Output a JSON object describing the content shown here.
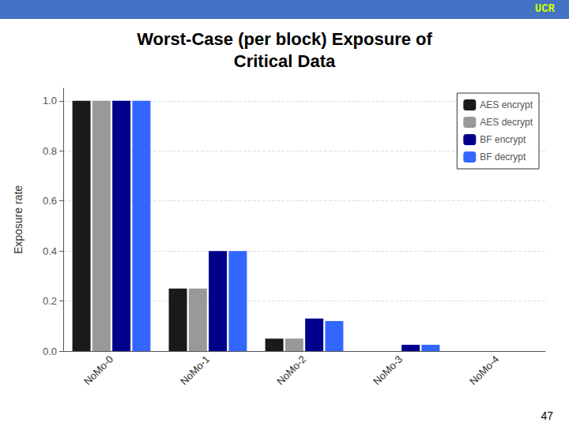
{
  "chart_data": {
    "type": "bar",
    "title": "Worst-Case (per block) Exposure of\nCritical Data",
    "annotations": [
      "UCR",
      "47"
    ],
    "ylabel": "Exposure rate",
    "categories": [
      "NoMo-0",
      "NoMo-1",
      "NoMo-2",
      "NoMo-3",
      "NoMo-4"
    ],
    "series": [
      {
        "name": "AES encrypt",
        "color": "#1a1a1a",
        "values": [
          1.0,
          0.25,
          0.05,
          0.0,
          0.0
        ]
      },
      {
        "name": "AES decrypt",
        "color": "#999999",
        "values": [
          1.0,
          0.25,
          0.05,
          0.0,
          0.0
        ]
      },
      {
        "name": "BF encrypt",
        "color": "#00008b",
        "values": [
          1.0,
          0.4,
          0.13,
          0.025,
          0.0
        ]
      },
      {
        "name": "BF decrypt",
        "color": "#3366ff",
        "values": [
          1.0,
          0.4,
          0.12,
          0.025,
          0.0
        ]
      }
    ],
    "ylim": [
      0,
      1.05
    ],
    "yticks": [
      {
        "value": 0,
        "label": "0.0"
      },
      0.2,
      0.4,
      0.6,
      0.8,
      {
        "value": 1,
        "label": "1.0"
      }
    ],
    "grid": true,
    "legend": "upper right"
  }
}
